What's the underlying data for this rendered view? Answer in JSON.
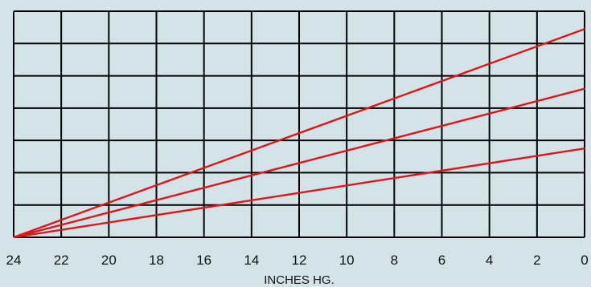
{
  "chart_data": {
    "type": "line",
    "title": "",
    "xlabel": "INCHES HG.",
    "ylabel": "",
    "x_ticks": [
      24,
      22,
      20,
      18,
      16,
      14,
      12,
      10,
      8,
      6,
      4,
      2,
      0
    ],
    "xlim": [
      24,
      0
    ],
    "ylim": [
      0,
      7
    ],
    "y_tick_labels": [],
    "grid": true,
    "legend": "none",
    "series": [
      {
        "x": [
          24,
          0
        ],
        "y": [
          0,
          6.45
        ]
      },
      {
        "x": [
          24,
          0
        ],
        "y": [
          0,
          4.6
        ]
      },
      {
        "x": [
          24,
          0
        ],
        "y": [
          0,
          2.75
        ]
      }
    ],
    "colors": {
      "background": "#d3e3e7",
      "grid": "#000000",
      "series": "#e0141b"
    }
  }
}
